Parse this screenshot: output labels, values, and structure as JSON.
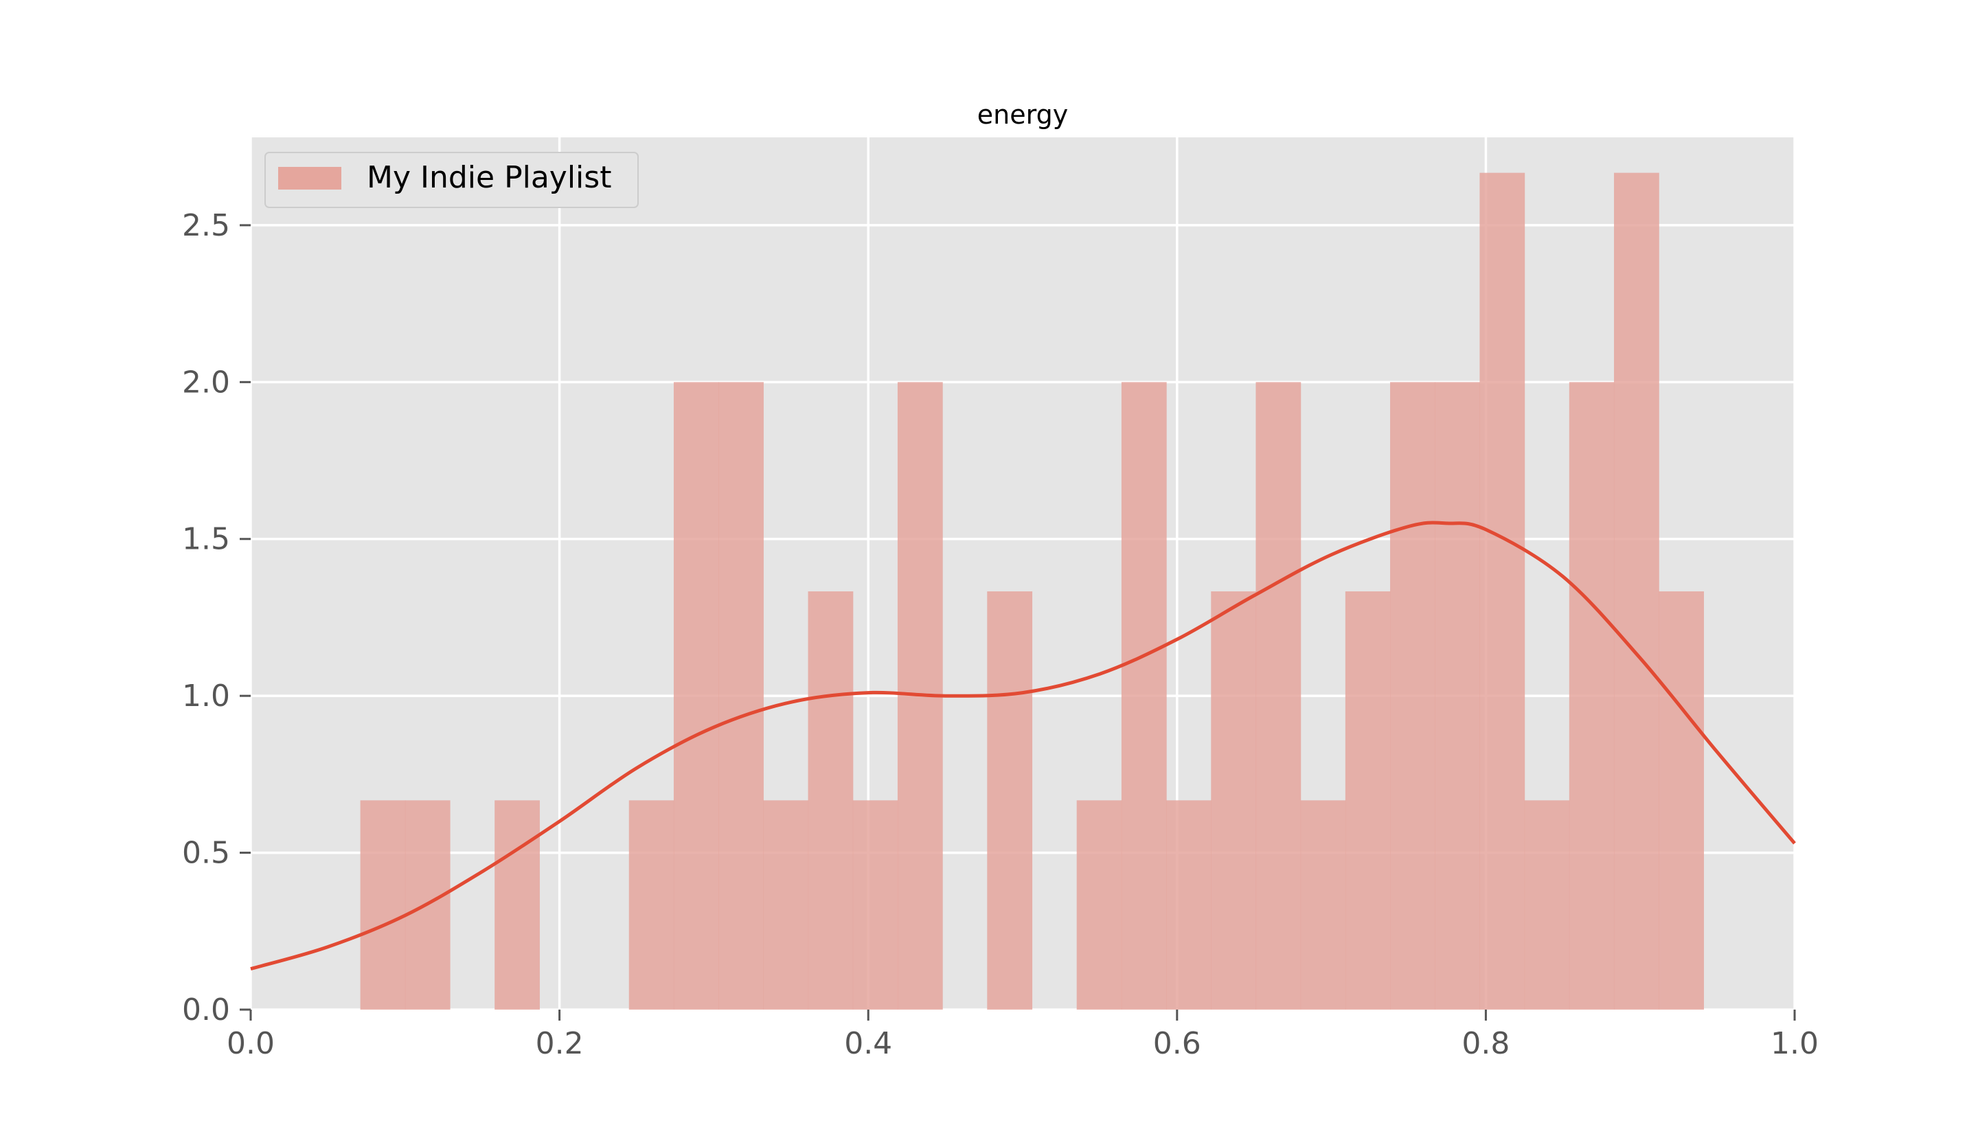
{
  "chart_data": {
    "type": "bar",
    "title": "energy",
    "xlabel": "",
    "ylabel": "",
    "xlim": [
      0.0,
      1.0
    ],
    "ylim": [
      0.0,
      2.78
    ],
    "grid": true,
    "legend_placement": "top-left",
    "x_ticks": [
      "0.0",
      "0.2",
      "0.4",
      "0.6",
      "0.8",
      "1.0"
    ],
    "y_ticks": [
      "0.0",
      "0.5",
      "1.0",
      "1.5",
      "2.0",
      "2.5"
    ],
    "series": [
      {
        "name": "My Indie Playlist",
        "kind": "histogram",
        "color": "#e5a69d",
        "bin_edges": [
          0.071,
          0.1,
          0.129,
          0.158,
          0.187,
          0.216,
          0.245,
          0.274,
          0.303,
          0.332,
          0.361,
          0.39,
          0.419,
          0.448,
          0.477,
          0.506,
          0.535,
          0.564,
          0.593,
          0.622,
          0.651,
          0.68,
          0.709,
          0.738,
          0.767,
          0.796,
          0.825,
          0.854,
          0.883,
          0.912,
          0.941
        ],
        "values": [
          0.667,
          0.667,
          0,
          0.667,
          0,
          0,
          0.667,
          2.0,
          2.0,
          0.667,
          1.333,
          0.667,
          2.0,
          0,
          1.333,
          0,
          0.667,
          2.0,
          0.667,
          1.333,
          2.0,
          0.667,
          1.333,
          2.0,
          2.0,
          2.667,
          0.667,
          2.0,
          2.667,
          1.333
        ]
      },
      {
        "name": "",
        "kind": "kde",
        "color": "#e24a33",
        "x": [
          0.0,
          0.05,
          0.1,
          0.15,
          0.2,
          0.25,
          0.3,
          0.35,
          0.4,
          0.45,
          0.5,
          0.55,
          0.6,
          0.65,
          0.7,
          0.75,
          0.775,
          0.8,
          0.85,
          0.9,
          0.95,
          1.0
        ],
        "y": [
          0.13,
          0.2,
          0.3,
          0.44,
          0.6,
          0.77,
          0.9,
          0.98,
          1.01,
          1.0,
          1.01,
          1.07,
          1.18,
          1.32,
          1.45,
          1.54,
          1.55,
          1.53,
          1.38,
          1.12,
          0.82,
          0.53
        ]
      }
    ]
  }
}
